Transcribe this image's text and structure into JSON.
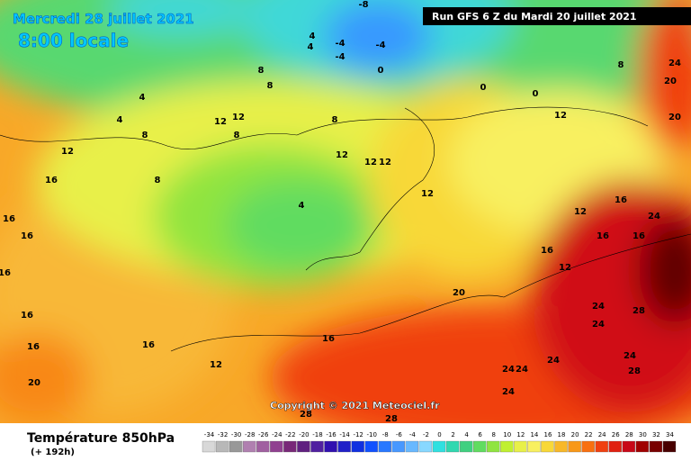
{
  "header": {
    "date": "Mercredi 28 juillet 2021",
    "time": "8:00 locale",
    "run": "Run GFS 6 Z du Mardi 20 juillet 2021",
    "copyright": "Copyright © 2021 Meteociel.fr"
  },
  "footer": {
    "title": "Température 850hPa",
    "lead": "(+ 192h)"
  },
  "scale": {
    "values": [
      -34,
      -32,
      -30,
      -28,
      -26,
      -24,
      -22,
      -20,
      -18,
      -16,
      -14,
      -12,
      -10,
      -8,
      -6,
      -4,
      -2,
      0,
      2,
      4,
      6,
      8,
      10,
      12,
      14,
      16,
      18,
      20,
      22,
      24,
      26,
      28,
      30,
      32,
      34
    ],
    "colors": [
      "#d8d8d8",
      "#b8b8b8",
      "#989898",
      "#b080b0",
      "#a060a0",
      "#904090",
      "#782878",
      "#602080",
      "#5020a0",
      "#3010b0",
      "#2020c8",
      "#1030e0",
      "#1050ff",
      "#2878ff",
      "#4898ff",
      "#68b8ff",
      "#88d8ff",
      "#30e0e0",
      "#30d8b0",
      "#40d080",
      "#60dc60",
      "#90e440",
      "#c0f030",
      "#e8f048",
      "#f8f060",
      "#f8d838",
      "#f8b828",
      "#f89818",
      "#f87010",
      "#f04010",
      "#e02010",
      "#c80818",
      "#a00000",
      "#780000",
      "#480000"
    ]
  },
  "contour_labels": [
    4,
    4,
    8,
    12,
    16,
    16,
    16,
    16,
    16,
    16,
    16,
    12,
    20,
    8,
    4,
    12,
    12,
    12,
    12,
    12,
    8,
    8,
    0,
    0,
    -4,
    -4,
    -4,
    0,
    4,
    4,
    8,
    8,
    12,
    12,
    16,
    24,
    16,
    16,
    16,
    12,
    12,
    20,
    24,
    28,
    24,
    16,
    24,
    24,
    24,
    24,
    28,
    24,
    28,
    28,
    20,
    24,
    20,
    8,
    -8
  ]
}
